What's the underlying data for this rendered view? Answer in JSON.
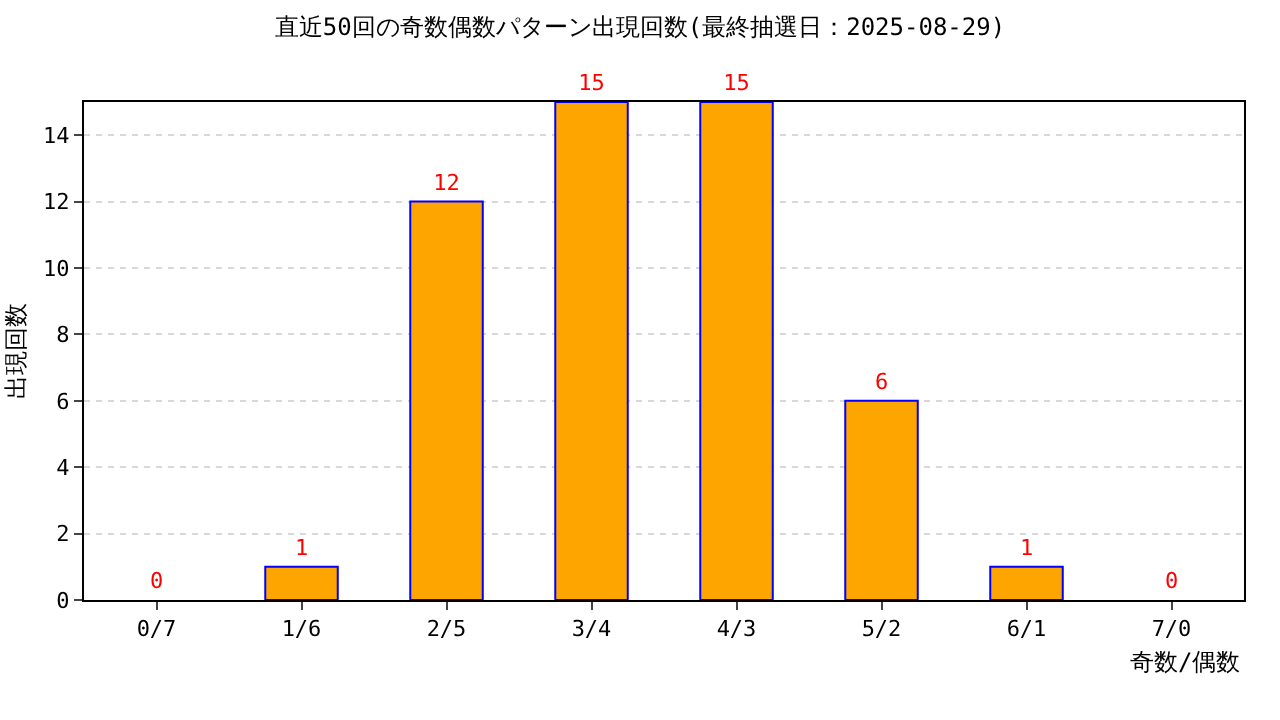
{
  "chart_data": {
    "type": "bar",
    "title": "直近50回の奇数偶数パターン出現回数(最終抽選日：2025-08-29)",
    "xlabel": "奇数/偶数",
    "ylabel": "出現回数",
    "categories": [
      "0/7",
      "1/6",
      "2/5",
      "3/4",
      "4/3",
      "5/2",
      "6/1",
      "7/0"
    ],
    "values": [
      0,
      1,
      12,
      15,
      15,
      6,
      1,
      0
    ],
    "color": "#ffa500",
    "ylim": [
      0,
      15
    ],
    "yticks": [
      0,
      2,
      4,
      6,
      8,
      10,
      12,
      14
    ],
    "grid": "y",
    "data_labels": true
  }
}
